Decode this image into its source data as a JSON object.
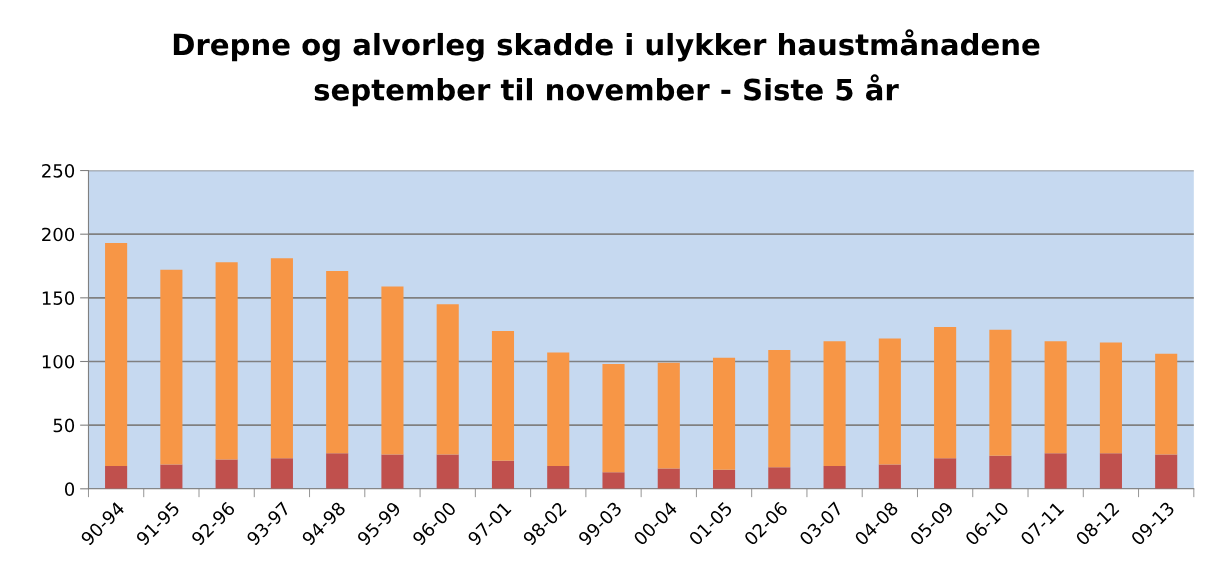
{
  "chart_data": {
    "type": "bar",
    "title": "Drepne og alvorleg skadde i ulykker haustmånadene\nseptember til november - Siste 5 år",
    "categories": [
      "90-94",
      "91-95",
      "92-96",
      "93-97",
      "94-98",
      "95-99",
      "96-00",
      "97-01",
      "98-02",
      "99-03",
      "00-04",
      "01-05",
      "02-06",
      "03-07",
      "04-08",
      "05-09",
      "06-10",
      "07-11",
      "08-12",
      "09-13"
    ],
    "stacked": true,
    "series": [
      {
        "color": "#c0504d",
        "values": [
          18,
          19,
          23,
          24,
          28,
          27,
          27,
          22,
          18,
          13,
          16,
          15,
          17,
          18,
          19,
          24,
          26,
          28,
          28,
          27
        ]
      },
      {
        "color": "#f79646",
        "values": [
          175,
          153,
          155,
          157,
          143,
          132,
          118,
          102,
          89,
          85,
          83,
          88,
          92,
          98,
          99,
          103,
          99,
          88,
          87,
          79
        ]
      }
    ],
    "ylim": [
      0,
      250
    ],
    "yticks": [
      0,
      50,
      100,
      150,
      200,
      250
    ],
    "grid": "y",
    "legend": false
  }
}
